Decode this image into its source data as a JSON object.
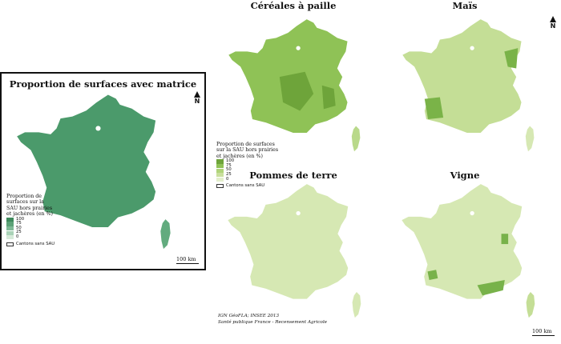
{
  "left_panel": {
    "title": "Proportion de surfaces avec matrice",
    "north": "N",
    "scale": "100 km",
    "fill": "#4b9a6b",
    "corsica_fill": "#62ab7e",
    "legend": {
      "title": "Proportion de surfaces sur la SAU hors prairies et jachères (en %)",
      "items": [
        {
          "label": "100",
          "color": "#3e8a5c"
        },
        {
          "label": "75",
          "color": "#5ca277"
        },
        {
          "label": "50",
          "color": "#7fba96"
        },
        {
          "label": "25",
          "color": "#a9d2b7"
        },
        {
          "label": "0",
          "color": "#d6ead9"
        }
      ],
      "nodata": "Cantons sans SAU"
    }
  },
  "maps": [
    {
      "title": "Céréales à paille",
      "fill": "#8fc256",
      "accent": "#6ea43a",
      "south": "#b9d98a"
    },
    {
      "title": "Maïs",
      "fill": "#c4de96",
      "accent": "#7ab348",
      "south": "#d6e8b3"
    },
    {
      "title": "Pommes de terre",
      "fill": "#d6e8b3",
      "accent": "#d6e8b3",
      "south": "#d6e8b3"
    },
    {
      "title": "Vigne",
      "fill": "#d6e8b3",
      "accent": "#78b24a",
      "south": "#c4de96"
    }
  ],
  "right_north": "N",
  "right_scale": "100 km",
  "right_legend": {
    "title": "Proportion de surfaces sur la SAU hors prairies et jachères (en %)",
    "items": [
      {
        "label": "100",
        "color": "#6ea43a"
      },
      {
        "label": "75",
        "color": "#8fc256"
      },
      {
        "label": "50",
        "color": "#b0d47a"
      },
      {
        "label": "25",
        "color": "#c9e09d"
      },
      {
        "label": "0",
        "color": "#e3efcc"
      }
    ],
    "nodata": "Cantons sans SAU"
  },
  "source": {
    "line1": "IGN GéoFLA; INSEE 2013",
    "line2": "Santé publique France - Recensement Agricole"
  }
}
